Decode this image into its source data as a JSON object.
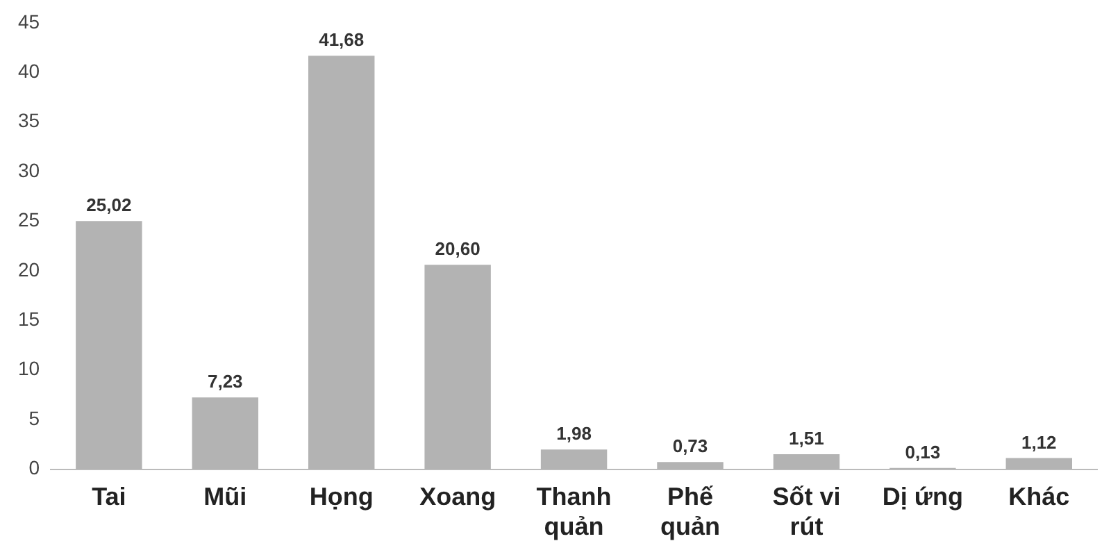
{
  "chart_data": {
    "type": "bar",
    "categories": [
      "Tai",
      "Mũi",
      "Họng",
      "Xoang",
      "Thanh quản",
      "Phế quản",
      "Sốt vi rút",
      "Dị ứng",
      "Khác"
    ],
    "values": [
      25.02,
      7.23,
      41.68,
      20.6,
      1.98,
      0.73,
      1.51,
      0.13,
      1.12
    ],
    "value_labels": [
      "25,02",
      "7,23",
      "41,68",
      "20,60",
      "1,98",
      "0,73",
      "1,51",
      "0,13",
      "1,12"
    ],
    "color": "#b3b3b3",
    "ylim": [
      0,
      45
    ],
    "yticks": [
      0,
      5,
      10,
      15,
      20,
      25,
      30,
      35,
      40,
      45
    ],
    "grid": false,
    "legend": false
  }
}
